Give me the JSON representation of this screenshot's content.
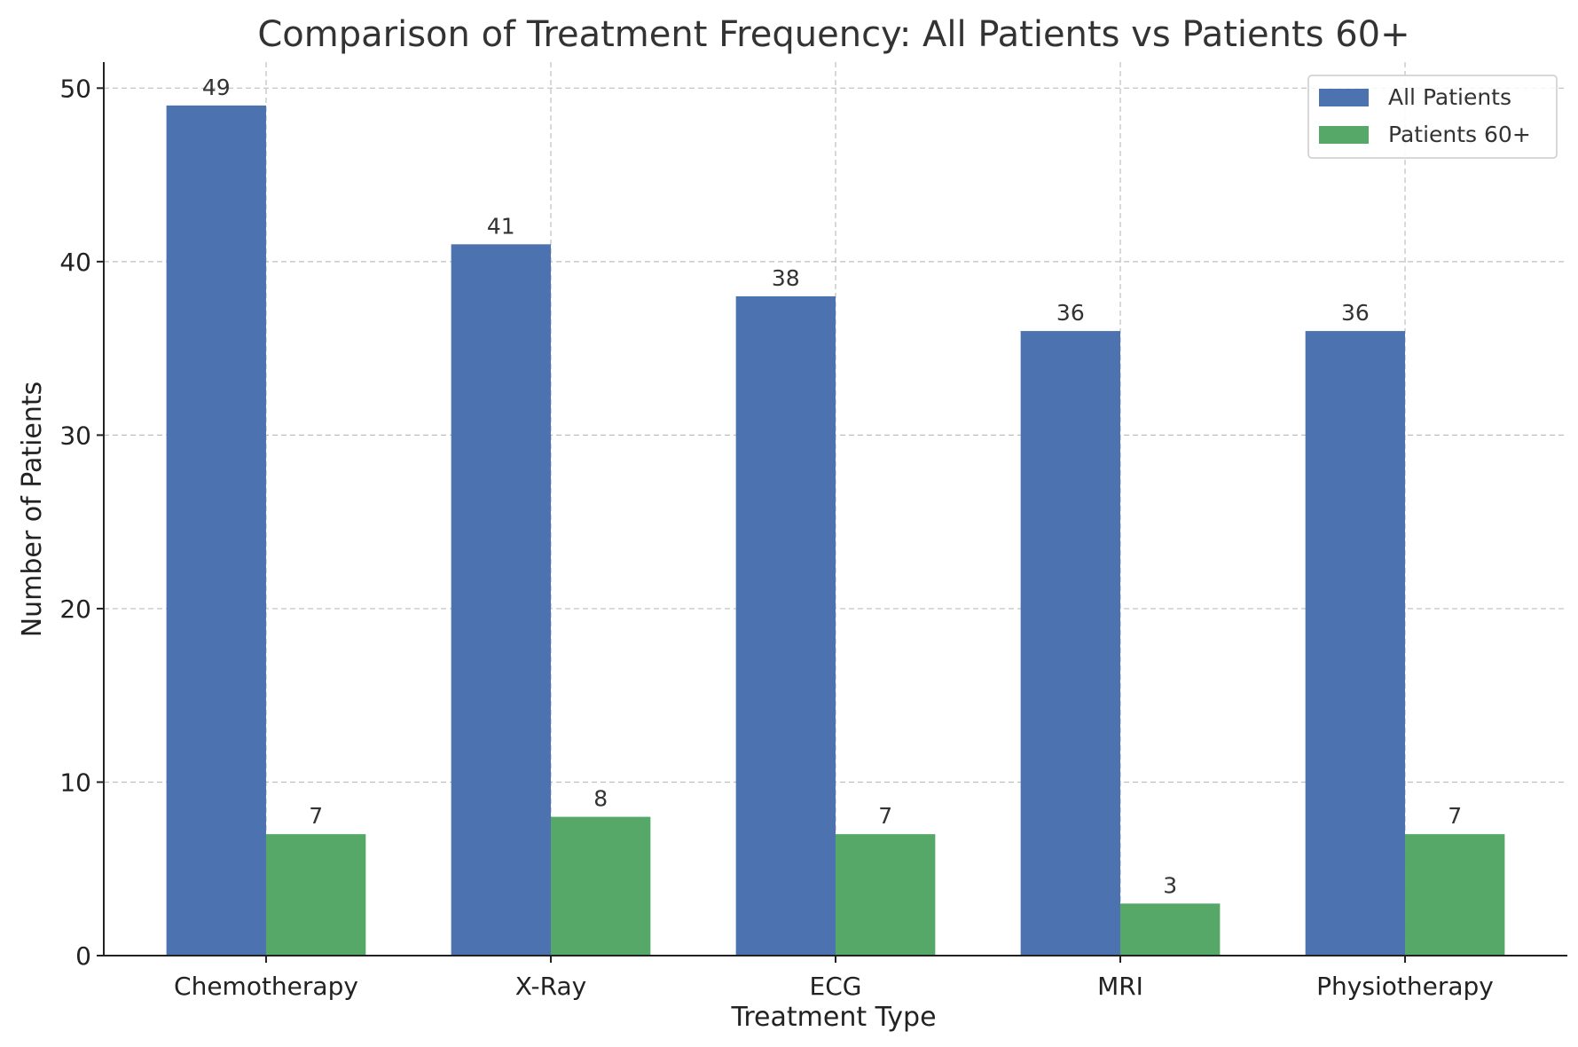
{
  "chart_data": {
    "type": "bar",
    "title": "Comparison of Treatment Frequency: All Patients vs Patients 60+",
    "xlabel": "Treatment Type",
    "ylabel": "Number of Patients",
    "categories": [
      "Chemotherapy",
      "X-Ray",
      "ECG",
      "MRI",
      "Physiotherapy"
    ],
    "series": [
      {
        "name": "All Patients",
        "color": "#4c72b0",
        "values": [
          49,
          41,
          38,
          36,
          36
        ]
      },
      {
        "name": "Patients 60+",
        "color": "#55a868",
        "values": [
          7,
          8,
          7,
          3,
          7
        ]
      }
    ],
    "ylim": [
      0,
      51.5
    ],
    "yticks": [
      0,
      10,
      20,
      30,
      40,
      50
    ],
    "grid": true,
    "legend_position": "top-right"
  }
}
